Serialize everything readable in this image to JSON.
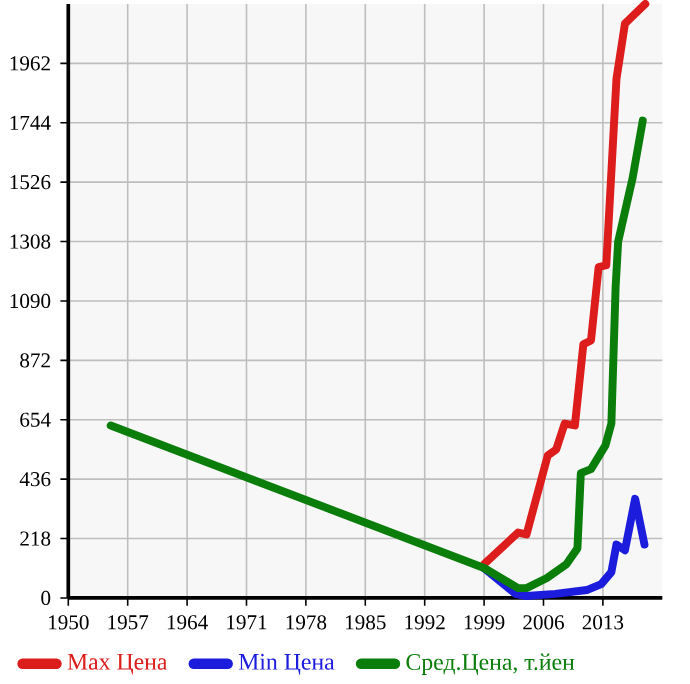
{
  "chart_data": {
    "type": "line",
    "xlim": [
      1950,
      2020
    ],
    "ylim": [
      0,
      2180
    ],
    "xticks": [
      1950,
      1957,
      1964,
      1971,
      1978,
      1985,
      1992,
      1999,
      2006,
      2013
    ],
    "yticks": [
      0,
      218,
      436,
      654,
      872,
      1090,
      1308,
      1526,
      1744,
      1962
    ],
    "grid": true,
    "legend": "bottom",
    "marker": "none",
    "line_style": "solid",
    "series": [
      {
        "name": "Max Цена",
        "color": "#dd1c1c",
        "x": [
          1999,
          2003,
          2004,
          2006.5,
          2007.5,
          2008.5,
          2009.7,
          2010.7,
          2011.6,
          2012.5,
          2013.4,
          2014.6,
          2015.6,
          2018
        ],
        "values": [
          124,
          240,
          233,
          523,
          545,
          640,
          633,
          931,
          945,
          1214,
          1221,
          1905,
          2108,
          2180
        ]
      },
      {
        "name": "Min Цена",
        "color": "#1c1cdd",
        "x": [
          1999,
          2002.7,
          2004,
          2007.4,
          2011.1,
          2012.8,
          2014,
          2014.6,
          2015.6,
          2016.8,
          2017.9
        ],
        "values": [
          109,
          15,
          7,
          15,
          29,
          51,
          95,
          196,
          175,
          364,
          196
        ]
      },
      {
        "name": "Сред.Цена, т.йен",
        "color": "#0a7d0a",
        "x": [
          1955,
          1999,
          2003,
          2004,
          2006.4,
          2008.7,
          2010,
          2010.4,
          2011.6,
          2013.3,
          2014,
          2014.5,
          2014.8,
          2015.7,
          2016.5,
          2017.7
        ],
        "values": [
          633,
          110,
          36,
          36,
          73,
          124,
          182,
          458,
          473,
          560,
          640,
          1141,
          1308,
          1432,
          1541,
          1752
        ]
      }
    ]
  }
}
